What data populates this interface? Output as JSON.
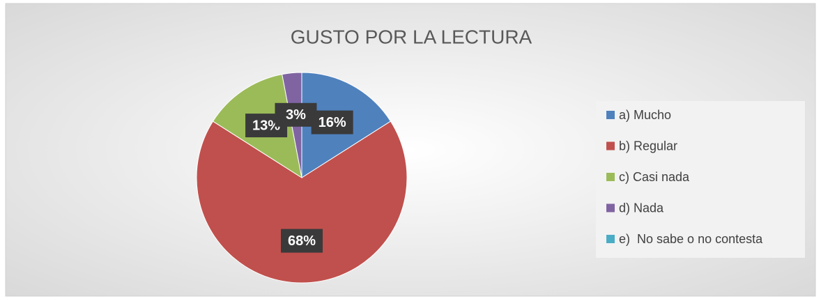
{
  "chart_data": {
    "type": "pie",
    "title": "GUSTO POR LA LECTURA",
    "categories": [
      "a) Mucho",
      "b) Regular",
      "c) Casi nada",
      "d) Nada",
      "e)  No sabe o no contesta"
    ],
    "values": [
      16,
      68,
      13,
      3,
      0
    ],
    "value_labels": [
      "16%",
      "68%",
      "13%",
      "3%",
      null
    ],
    "colors": [
      "#4f81bd",
      "#c0504d",
      "#9bbb59",
      "#8064a2",
      "#4bacc6"
    ],
    "legend": "right"
  }
}
